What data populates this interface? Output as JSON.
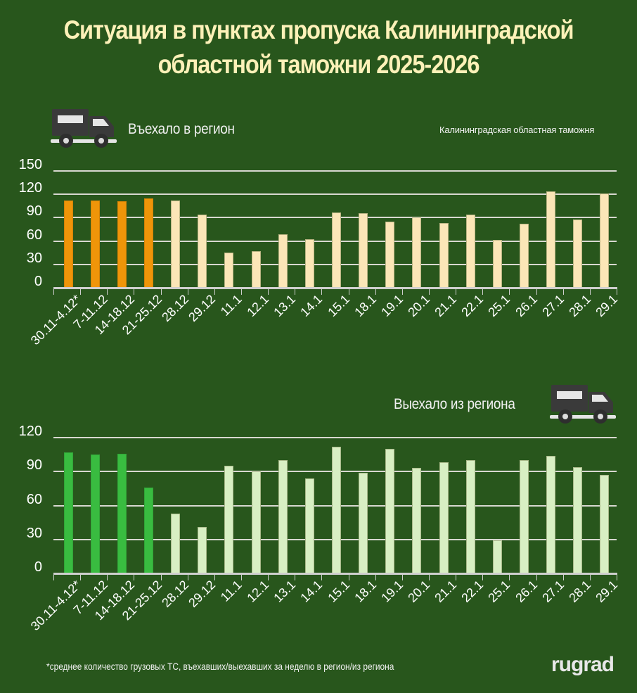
{
  "header": {
    "title_line1": "Ситуация в пунктах пропуска Калининградской",
    "title_line2": "областной таможни 2025-2026",
    "source": "Калининградская областная таможня"
  },
  "sections": {
    "entered": {
      "label": "Въехало в регион",
      "icon": "truck-icon"
    },
    "exited": {
      "label": "Выехало из региона",
      "icon": "truck-icon"
    }
  },
  "footer": {
    "footnote": "*среднее количество грузовых ТС, въехавших/выехавших за неделю в регион/из региона",
    "brand": "rugrad"
  },
  "colors": {
    "background": "#28561c",
    "title": "#fdf1b8",
    "entered_weekly": "#ef9509",
    "entered_daily": "#fbe6b7",
    "exited_weekly": "#39bc40",
    "exited_daily": "#d8efc3"
  },
  "chart_data": [
    {
      "type": "bar",
      "title": "Въехало в регион",
      "xlabel": "",
      "ylabel": "",
      "ylim": [
        0,
        150
      ],
      "yticks": [
        0,
        30,
        60,
        90,
        120,
        150
      ],
      "grid": true,
      "categories": [
        "30.11-4.12*",
        "7-11.12",
        "14-18.12",
        "21-25.12",
        "28.12",
        "29.12",
        "11.1",
        "12.1",
        "13.1",
        "14.1",
        "15.1",
        "18.1",
        "19.1",
        "20.1",
        "21.1",
        "22.1",
        "25.1",
        "26.1",
        "27.1",
        "28.1",
        "29.1"
      ],
      "values": [
        112,
        112,
        111,
        115,
        112,
        94,
        45,
        47,
        69,
        62,
        97,
        96,
        85,
        90,
        83,
        94,
        61,
        82,
        124,
        88,
        121
      ],
      "weekly_average_count": 4
    },
    {
      "type": "bar",
      "title": "Выехало из региона",
      "xlabel": "",
      "ylabel": "",
      "ylim": [
        0,
        120
      ],
      "yticks": [
        0,
        30,
        60,
        90,
        120
      ],
      "grid": true,
      "categories": [
        "30.11-4.12*",
        "7-11.12",
        "14-18.12",
        "21-25.12",
        "28.12",
        "29.12",
        "11.1",
        "12.1",
        "13.1",
        "14.1",
        "15.1",
        "18.1",
        "19.1",
        "20.1",
        "21.1",
        "22.1",
        "25.1",
        "26.1",
        "27.1",
        "28.1",
        "29.1"
      ],
      "values": [
        107,
        105,
        106,
        76,
        53,
        41,
        95,
        90,
        100,
        84,
        112,
        89,
        110,
        93,
        98,
        100,
        29,
        100,
        104,
        94,
        87
      ],
      "weekly_average_count": 4
    }
  ]
}
